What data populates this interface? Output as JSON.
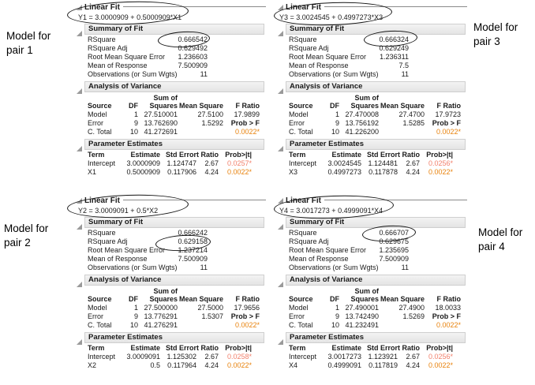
{
  "labels": [
    {
      "id": "pair1",
      "text": "Model for pair 1"
    },
    {
      "id": "pair3",
      "text": "Model for pair 3"
    },
    {
      "id": "pair2",
      "text": "Model for pair 2"
    },
    {
      "id": "pair4",
      "text": "Model for pair 4"
    }
  ],
  "icons": {
    "disclosure": "disclosure-triangle-open"
  },
  "colors": {
    "p_value_orange": "#e8820c",
    "p_value_salmon": "#f2806c",
    "banner_grey": "#ececec",
    "annotation_ellipse": "#141414"
  },
  "panels": [
    {
      "pair": "1",
      "title": "Linear Fit",
      "equation": "Y1 = 3.0000909 + 0.5000909*X1",
      "summary": {
        "title": "Summary of Fit",
        "rows": [
          [
            "RSquare",
            "0.666542"
          ],
          [
            "RSquare Adj",
            "0.629492"
          ],
          [
            "Root Mean Square Error",
            "1.236603"
          ],
          [
            "Mean of Response",
            "7.500909"
          ],
          [
            "Observations (or Sum Wgts)",
            "11"
          ]
        ]
      },
      "anova": {
        "title": "Analysis of Variance",
        "sum_of_label": "Sum of",
        "headers": [
          "Source",
          "DF",
          "Squares",
          "Mean Square",
          "F Ratio"
        ],
        "rows": [
          [
            "Model",
            "1",
            "27.510001",
            "27.5100",
            "17.9899"
          ],
          [
            "Error",
            "9",
            "13.762690",
            "1.5292",
            "Prob > F"
          ],
          [
            "C. Total",
            "10",
            "41.272691",
            "",
            "0.0022*"
          ]
        ]
      },
      "params": {
        "title": "Parameter Estimates",
        "headers": [
          "Term",
          "Estimate",
          "Std Error",
          "t Ratio",
          "Prob>|t|"
        ],
        "rows": [
          [
            "Intercept",
            "3.0000909",
            "1.124747",
            "2.67",
            "0.0257*"
          ],
          [
            "X1",
            "0.5000909",
            "0.117906",
            "4.24",
            "0.0022*"
          ]
        ]
      }
    },
    {
      "pair": "3",
      "title": "Linear Fit",
      "equation": "Y3 = 3.0024545 + 0.4997273*X3",
      "summary": {
        "title": "Summary of Fit",
        "rows": [
          [
            "RSquare",
            "0.666324"
          ],
          [
            "RSquare Adj",
            "0.629249"
          ],
          [
            "Root Mean Square Error",
            "1.236311"
          ],
          [
            "Mean of Response",
            "7.5"
          ],
          [
            "Observations (or Sum Wgts)",
            "11"
          ]
        ]
      },
      "anova": {
        "title": "Analysis of Variance",
        "sum_of_label": "Sum of",
        "headers": [
          "Source",
          "DF",
          "Squares",
          "Mean Square",
          "F Ratio"
        ],
        "rows": [
          [
            "Model",
            "1",
            "27.470008",
            "27.4700",
            "17.9723"
          ],
          [
            "Error",
            "9",
            "13.756192",
            "1.5285",
            "Prob > F"
          ],
          [
            "C. Total",
            "10",
            "41.226200",
            "",
            "0.0022*"
          ]
        ]
      },
      "params": {
        "title": "Parameter Estimates",
        "headers": [
          "Term",
          "Estimate",
          "Std Error",
          "t Ratio",
          "Prob>|t|"
        ],
        "rows": [
          [
            "Intercept",
            "3.0024545",
            "1.124481",
            "2.67",
            "0.0256*"
          ],
          [
            "X3",
            "0.4997273",
            "0.117878",
            "4.24",
            "0.0022*"
          ]
        ]
      }
    },
    {
      "pair": "2",
      "title": "Linear Fit",
      "equation": "Y2 = 3.0009091 + 0.5*X2",
      "summary": {
        "title": "Summary of Fit",
        "rows": [
          [
            "RSquare",
            "0.666242"
          ],
          [
            "RSquare Adj",
            "0.629158"
          ],
          [
            "Root Mean Square Error",
            "1.237214"
          ],
          [
            "Mean of Response",
            "7.500909"
          ],
          [
            "Observations (or Sum Wgts)",
            "11"
          ]
        ]
      },
      "anova": {
        "title": "Analysis of Variance",
        "sum_of_label": "Sum of",
        "headers": [
          "Source",
          "DF",
          "Squares",
          "Mean Square",
          "F Ratio"
        ],
        "rows": [
          [
            "Model",
            "1",
            "27.500000",
            "27.5000",
            "17.9656"
          ],
          [
            "Error",
            "9",
            "13.776291",
            "1.5307",
            "Prob > F"
          ],
          [
            "C. Total",
            "10",
            "41.276291",
            "",
            "0.0022*"
          ]
        ]
      },
      "params": {
        "title": "Parameter Estimates",
        "headers": [
          "Term",
          "Estimate",
          "Std Error",
          "t Ratio",
          "Prob>|t|"
        ],
        "rows": [
          [
            "Intercept",
            "3.0009091",
            "1.125302",
            "2.67",
            "0.0258*"
          ],
          [
            "X2",
            "0.5",
            "0.117964",
            "4.24",
            "0.0022*"
          ]
        ]
      }
    },
    {
      "pair": "4",
      "title": "Linear Fit",
      "equation": "Y4 = 3.0017273 + 0.4999091*X4",
      "summary": {
        "title": "Summary of Fit",
        "rows": [
          [
            "RSquare",
            "0.666707"
          ],
          [
            "RSquare Adj",
            "0.629675"
          ],
          [
            "Root Mean Square Error",
            "1.235695"
          ],
          [
            "Mean of Response",
            "7.500909"
          ],
          [
            "Observations (or Sum Wgts)",
            "11"
          ]
        ]
      },
      "anova": {
        "title": "Analysis of Variance",
        "sum_of_label": "Sum of",
        "headers": [
          "Source",
          "DF",
          "Squares",
          "Mean Square",
          "F Ratio"
        ],
        "rows": [
          [
            "Model",
            "1",
            "27.490001",
            "27.4900",
            "18.0033"
          ],
          [
            "Error",
            "9",
            "13.742490",
            "1.5269",
            "Prob > F"
          ],
          [
            "C. Total",
            "10",
            "41.232491",
            "",
            "0.0022*"
          ]
        ]
      },
      "params": {
        "title": "Parameter Estimates",
        "headers": [
          "Term",
          "Estimate",
          "Std Error",
          "t Ratio",
          "Prob>|t|"
        ],
        "rows": [
          [
            "Intercept",
            "3.0017273",
            "1.123921",
            "2.67",
            "0.0256*"
          ],
          [
            "X4",
            "0.4999091",
            "0.117819",
            "4.24",
            "0.0022*"
          ]
        ]
      }
    }
  ]
}
